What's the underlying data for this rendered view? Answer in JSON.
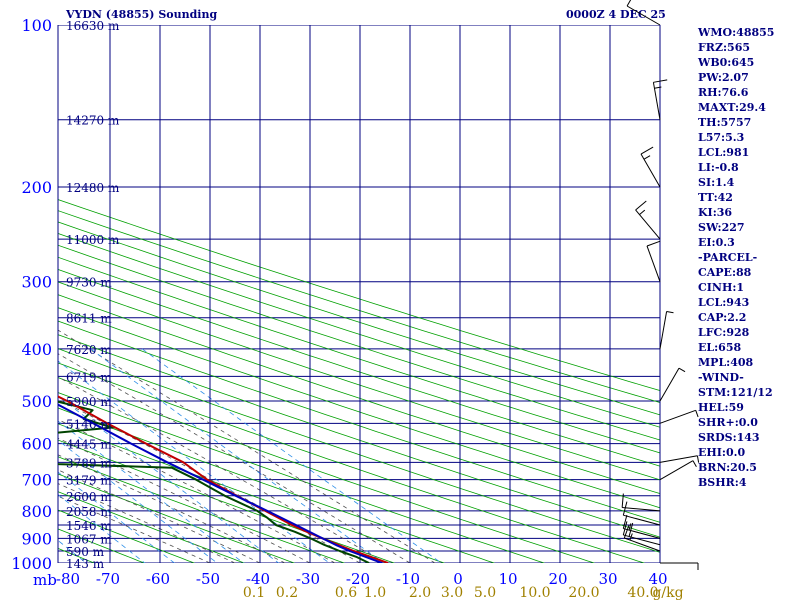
{
  "header": {
    "station": "VYDN (48855) Sounding",
    "time": "0000Z  4 DEC 25"
  },
  "stats": [
    "WMO:48855",
    "FRZ:565",
    "WB0:645",
    "PW:2.07",
    "RH:76.6",
    "MAXT:29.4",
    "TH:5757",
    "L57:5.3",
    "LCL:981",
    "LI:-0.8",
    "SI:1.4",
    "TT:42",
    "KI:36",
    "SW:227",
    "EI:0.3",
    "-PARCEL-",
    "CAPE:88",
    "CINH:1",
    "LCL:943",
    "CAP:2.2",
    "LFC:928",
    "EL:658",
    "MPL:408",
    "-WIND-",
    "STM:121/12",
    "HEL:59",
    "SHR+:0.0",
    "SRDS:143",
    "EHI:0.0",
    "BRN:20.5",
    "BSHR:4"
  ],
  "chart_data": {
    "type": "skew-t",
    "pressure_axis": {
      "unit_label": "mb",
      "levels": [
        100,
        150,
        200,
        250,
        300,
        350,
        400,
        450,
        500,
        550,
        600,
        650,
        700,
        750,
        800,
        850,
        900,
        950,
        1000
      ],
      "labels": [
        {
          "p": 100,
          "text": "100"
        },
        {
          "p": 200,
          "text": "200"
        },
        {
          "p": 300,
          "text": "300"
        },
        {
          "p": 400,
          "text": "400"
        },
        {
          "p": 500,
          "text": "500"
        },
        {
          "p": 600,
          "text": "600"
        },
        {
          "p": 700,
          "text": "700"
        },
        {
          "p": 800,
          "text": "800"
        },
        {
          "p": 900,
          "text": "900"
        },
        {
          "p": 1000,
          "text": "1000"
        }
      ]
    },
    "heights": [
      {
        "p": 100,
        "text": "16630 m"
      },
      {
        "p": 150,
        "text": "14270 m"
      },
      {
        "p": 200,
        "text": "12480 m"
      },
      {
        "p": 250,
        "text": "11000 m"
      },
      {
        "p": 300,
        "text": "9730 m"
      },
      {
        "p": 350,
        "text": "8611 m"
      },
      {
        "p": 400,
        "text": "7620 m"
      },
      {
        "p": 450,
        "text": "6719 m"
      },
      {
        "p": 500,
        "text": "5900 m"
      },
      {
        "p": 550,
        "text": "5146 m"
      },
      {
        "p": 600,
        "text": "4445 m"
      },
      {
        "p": 650,
        "text": "3789 m"
      },
      {
        "p": 700,
        "text": "3179 m"
      },
      {
        "p": 750,
        "text": "2600 m"
      },
      {
        "p": 800,
        "text": "2058 m"
      },
      {
        "p": 850,
        "text": "1546 m"
      },
      {
        "p": 900,
        "text": "1067 m"
      },
      {
        "p": 950,
        "text": "590 m"
      },
      {
        "p": 1000,
        "text": "143 m"
      }
    ],
    "temp_axis": {
      "range": [
        -80,
        40
      ],
      "ticks": [
        -80,
        -70,
        -60,
        -50,
        -40,
        -30,
        -20,
        -10,
        0,
        10,
        20,
        30,
        40
      ],
      "labels": [
        "-80",
        "-70",
        "-60",
        "-50",
        "-40",
        "-30",
        "-20",
        "-10",
        "0",
        "10",
        "20",
        "30",
        "40"
      ]
    },
    "mixing_ratio_labels": [
      "0.1",
      "0.2",
      "0.6",
      "1.0",
      "2.0",
      "3.0",
      "5.0",
      "10.0",
      "20.0",
      "40.0",
      "g/kg"
    ],
    "series": {
      "temperature": [
        {
          "p": 1000,
          "t": 25.6
        },
        {
          "p": 975,
          "t": 23.5
        },
        {
          "p": 950,
          "t": 21.2
        },
        {
          "p": 925,
          "t": 19.4
        },
        {
          "p": 900,
          "t": 17.6
        },
        {
          "p": 875,
          "t": 15.8
        },
        {
          "p": 850,
          "t": 14.2
        },
        {
          "p": 800,
          "t": 11.8
        },
        {
          "p": 750,
          "t": 9.2
        },
        {
          "p": 700,
          "t": 6.6
        },
        {
          "p": 650,
          "t": 5.4
        },
        {
          "p": 600,
          "t": 1.8
        },
        {
          "p": 550,
          "t": -1.8
        },
        {
          "p": 500,
          "t": -5.2
        },
        {
          "p": 450,
          "t": -10.2
        },
        {
          "p": 400,
          "t": -15.0
        },
        {
          "p": 350,
          "t": -21.6
        },
        {
          "p": 300,
          "t": -29.6
        },
        {
          "p": 250,
          "t": -38.6
        },
        {
          "p": 200,
          "t": -49.0
        },
        {
          "p": 175,
          "t": -54.6
        },
        {
          "p": 150,
          "t": -61.0
        },
        {
          "p": 125,
          "t": -68.8
        },
        {
          "p": 100,
          "t": -78.8
        }
      ],
      "dewpoint": [
        {
          "p": 1000,
          "t": 21.8
        },
        {
          "p": 975,
          "t": 20.6
        },
        {
          "p": 950,
          "t": 18.4
        },
        {
          "p": 925,
          "t": 16.6
        },
        {
          "p": 900,
          "t": 15.2
        },
        {
          "p": 875,
          "t": 13.4
        },
        {
          "p": 850,
          "t": 11.0
        },
        {
          "p": 825,
          "t": 10.8
        },
        {
          "p": 800,
          "t": 10.2
        },
        {
          "p": 750,
          "t": 6.8
        },
        {
          "p": 700,
          "t": 4.4
        },
        {
          "p": 665,
          "t": 2.0
        },
        {
          "p": 655,
          "t": -20.0
        },
        {
          "p": 620,
          "t": -20.4
        },
        {
          "p": 600,
          "t": -21.8
        },
        {
          "p": 575,
          "t": -16.0
        },
        {
          "p": 560,
          "t": -1.6
        },
        {
          "p": 540,
          "t": -5.6
        },
        {
          "p": 520,
          "t": -2.0
        },
        {
          "p": 500,
          "t": -7.6
        },
        {
          "p": 485,
          "t": -11.0
        },
        {
          "p": 475,
          "t": -9.2
        },
        {
          "p": 460,
          "t": -11.6
        },
        {
          "p": 452,
          "t": -34.0
        },
        {
          "p": 445,
          "t": -20.0
        },
        {
          "p": 435,
          "t": -12.4
        },
        {
          "p": 420,
          "t": -29.0
        },
        {
          "p": 400,
          "t": -38.0
        },
        {
          "p": 370,
          "t": -48.6
        },
        {
          "p": 325,
          "t": -30.6
        },
        {
          "p": 305,
          "t": -38.0
        },
        {
          "p": 270,
          "t": -42.0
        },
        {
          "p": 255,
          "t": -51.0
        },
        {
          "p": 250,
          "t": -47.0
        },
        {
          "p": 235,
          "t": -55.0
        },
        {
          "p": 225,
          "t": -60.0
        },
        {
          "p": 205,
          "t": -62.0
        },
        {
          "p": 180,
          "t": -66.0
        },
        {
          "p": 160,
          "t": -71.5
        },
        {
          "p": 140,
          "t": -78.0
        }
      ],
      "parcel": [
        {
          "p": 1000,
          "t": 24.4
        },
        {
          "p": 950,
          "t": 20.4
        },
        {
          "p": 928,
          "t": 19.0
        },
        {
          "p": 900,
          "t": 17.6
        },
        {
          "p": 850,
          "t": 15.0
        },
        {
          "p": 800,
          "t": 12.2
        },
        {
          "p": 750,
          "t": 9.0
        },
        {
          "p": 700,
          "t": 5.8
        },
        {
          "p": 650,
          "t": 2.2
        },
        {
          "p": 600,
          "t": -1.2
        },
        {
          "p": 550,
          "t": -4.6
        },
        {
          "p": 500,
          "t": -8.4
        },
        {
          "p": 450,
          "t": -13.6
        },
        {
          "p": 400,
          "t": -19.4
        },
        {
          "p": 350,
          "t": -26.2
        },
        {
          "p": 300,
          "t": -34.2
        },
        {
          "p": 250,
          "t": -43.6
        },
        {
          "p": 200,
          "t": -54.4
        },
        {
          "p": 150,
          "t": -67.0
        },
        {
          "p": 100,
          "t": -84.0
        }
      ]
    },
    "colors": {
      "pressure_lines": "#000080",
      "isotherms": "#0000c8",
      "dry_adiabats": "#00a000",
      "moist_adiabats": "#505050",
      "mixing_ratio": "#3090e8",
      "temperature": "#c00000",
      "dewpoint": "#004400",
      "parcel": "#0000c0",
      "wind_barbs": "#000000",
      "text": "#000080"
    },
    "wind_barbs": [
      {
        "p": 1000,
        "dir": 90,
        "spd": 5
      },
      {
        "p": 950,
        "dir": 290,
        "spd": 15
      },
      {
        "p": 925,
        "dir": 285,
        "spd": 20
      },
      {
        "p": 900,
        "dir": 285,
        "spd": 15
      },
      {
        "p": 850,
        "dir": 285,
        "spd": 10
      },
      {
        "p": 800,
        "dir": 275,
        "spd": 10
      },
      {
        "p": 700,
        "dir": 60,
        "spd": 5
      },
      {
        "p": 650,
        "dir": 80,
        "spd": 5
      },
      {
        "p": 550,
        "dir": 70,
        "spd": 5
      },
      {
        "p": 500,
        "dir": 30,
        "spd": 5
      },
      {
        "p": 400,
        "dir": 10,
        "spd": 5
      },
      {
        "p": 300,
        "dir": 340,
        "spd": 10
      },
      {
        "p": 250,
        "dir": 320,
        "spd": 15
      },
      {
        "p": 200,
        "dir": 330,
        "spd": 15
      },
      {
        "p": 150,
        "dir": 350,
        "spd": 15
      },
      {
        "p": 100,
        "dir": 300,
        "spd": 10
      }
    ]
  }
}
